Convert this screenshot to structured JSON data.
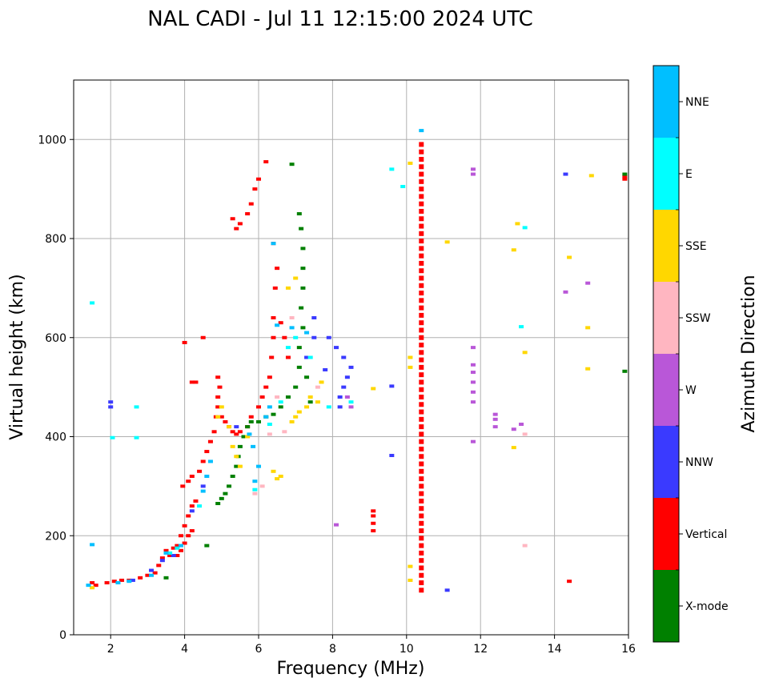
{
  "chart_data": {
    "type": "scatter",
    "title": "NAL CADI - Jul 11 12:15:00 2024 UTC",
    "xlabel": "Frequency (MHz)",
    "ylabel": "Virtual height (km)",
    "xlim": [
      1,
      16
    ],
    "ylim": [
      0,
      1120
    ],
    "xticks": [
      2,
      4,
      6,
      8,
      10,
      12,
      14,
      16
    ],
    "yticks": [
      0,
      200,
      400,
      600,
      800,
      1000
    ],
    "grid": true,
    "colorbar": {
      "label": "Azimuth Direction",
      "categories": [
        {
          "name": "X-mode",
          "color": "#008000"
        },
        {
          "name": "Vertical",
          "color": "#ff0000"
        },
        {
          "name": "NNW",
          "color": "#3a3aff"
        },
        {
          "name": "W",
          "color": "#b957d8"
        },
        {
          "name": "SSW",
          "color": "#ffb6c1"
        },
        {
          "name": "SSE",
          "color": "#ffd700"
        },
        {
          "name": "E",
          "color": "#00ffff"
        },
        {
          "name": "NNE",
          "color": "#00bfff"
        }
      ]
    },
    "series": [
      {
        "name": "Vertical",
        "points": [
          [
            1.5,
            105
          ],
          [
            1.6,
            100
          ],
          [
            1.9,
            105
          ],
          [
            2.1,
            108
          ],
          [
            2.3,
            110
          ],
          [
            2.5,
            110
          ],
          [
            2.8,
            115
          ],
          [
            3.0,
            120
          ],
          [
            3.2,
            125
          ],
          [
            3.3,
            140
          ],
          [
            3.4,
            155
          ],
          [
            3.5,
            170
          ],
          [
            3.6,
            160
          ],
          [
            3.7,
            175
          ],
          [
            3.8,
            180
          ],
          [
            3.9,
            200
          ],
          [
            4.0,
            220
          ],
          [
            4.1,
            240
          ],
          [
            4.2,
            260
          ],
          [
            4.3,
            270
          ],
          [
            3.8,
            160
          ],
          [
            3.9,
            170
          ],
          [
            4.0,
            185
          ],
          [
            4.1,
            200
          ],
          [
            4.2,
            210
          ],
          [
            3.95,
            300
          ],
          [
            4.1,
            310
          ],
          [
            4.2,
            320
          ],
          [
            4.4,
            330
          ],
          [
            4.5,
            350
          ],
          [
            4.6,
            370
          ],
          [
            4.7,
            390
          ],
          [
            4.8,
            410
          ],
          [
            4.85,
            440
          ],
          [
            4.9,
            460
          ],
          [
            4.9,
            480
          ],
          [
            4.95,
            500
          ],
          [
            4.9,
            520
          ],
          [
            5.0,
            440
          ],
          [
            5.1,
            430
          ],
          [
            5.2,
            420
          ],
          [
            5.3,
            410
          ],
          [
            5.4,
            405
          ],
          [
            5.5,
            410
          ],
          [
            5.6,
            400
          ],
          [
            5.7,
            420
          ],
          [
            5.8,
            440
          ],
          [
            6.0,
            460
          ],
          [
            6.1,
            480
          ],
          [
            6.2,
            500
          ],
          [
            6.3,
            520
          ],
          [
            6.35,
            560
          ],
          [
            6.4,
            600
          ],
          [
            6.4,
            640
          ],
          [
            6.45,
            700
          ],
          [
            6.5,
            740
          ],
          [
            6.4,
            790
          ],
          [
            6.6,
            630
          ],
          [
            6.7,
            600
          ],
          [
            6.8,
            560
          ],
          [
            4.2,
            510
          ],
          [
            4.0,
            590
          ],
          [
            5.4,
            820
          ],
          [
            5.5,
            830
          ],
          [
            5.7,
            850
          ],
          [
            5.8,
            870
          ],
          [
            5.9,
            900
          ],
          [
            6.0,
            920
          ],
          [
            6.2,
            955
          ],
          [
            5.3,
            840
          ],
          [
            9.1,
            210
          ],
          [
            9.1,
            225
          ],
          [
            9.1,
            240
          ],
          [
            9.1,
            250
          ],
          [
            15.9,
            925
          ],
          [
            15.9,
            920
          ],
          [
            14.4,
            108
          ],
          [
            4.3,
            510
          ],
          [
            4.5,
            600
          ]
        ]
      },
      {
        "name": "X-mode",
        "points": [
          [
            4.9,
            265
          ],
          [
            5.0,
            275
          ],
          [
            5.1,
            285
          ],
          [
            5.2,
            300
          ],
          [
            5.3,
            320
          ],
          [
            5.4,
            340
          ],
          [
            5.45,
            360
          ],
          [
            5.5,
            380
          ],
          [
            5.6,
            400
          ],
          [
            5.7,
            420
          ],
          [
            5.8,
            430
          ],
          [
            6.0,
            430
          ],
          [
            6.2,
            440
          ],
          [
            6.4,
            445
          ],
          [
            6.6,
            460
          ],
          [
            6.8,
            480
          ],
          [
            7.0,
            500
          ],
          [
            7.1,
            540
          ],
          [
            7.1,
            580
          ],
          [
            7.2,
            620
          ],
          [
            7.15,
            660
          ],
          [
            7.2,
            700
          ],
          [
            7.2,
            740
          ],
          [
            7.2,
            780
          ],
          [
            7.15,
            820
          ],
          [
            7.1,
            850
          ],
          [
            6.9,
            950
          ],
          [
            7.4,
            470
          ],
          [
            7.3,
            520
          ],
          [
            15.9,
            930
          ],
          [
            15.9,
            532
          ],
          [
            3.5,
            115
          ],
          [
            4.6,
            180
          ]
        ]
      },
      {
        "name": "NNW",
        "points": [
          [
            2.0,
            460
          ],
          [
            2.0,
            470
          ],
          [
            3.1,
            130
          ],
          [
            3.4,
            150
          ],
          [
            3.7,
            160
          ],
          [
            4.2,
            250
          ],
          [
            4.5,
            300
          ],
          [
            5.4,
            420
          ],
          [
            7.3,
            560
          ],
          [
            7.5,
            600
          ],
          [
            8.2,
            460
          ],
          [
            8.2,
            480
          ],
          [
            8.3,
            500
          ],
          [
            8.4,
            520
          ],
          [
            8.5,
            540
          ],
          [
            8.3,
            560
          ],
          [
            8.1,
            580
          ],
          [
            7.9,
            600
          ],
          [
            7.5,
            640
          ],
          [
            9.6,
            362
          ],
          [
            9.6,
            502
          ],
          [
            11.1,
            90
          ],
          [
            14.3,
            930
          ],
          [
            2.6,
            110
          ],
          [
            7.8,
            535
          ]
        ]
      },
      {
        "name": "W",
        "points": [
          [
            8.1,
            222
          ],
          [
            8.5,
            460
          ],
          [
            8.4,
            480
          ],
          [
            11.8,
            390
          ],
          [
            11.8,
            470
          ],
          [
            11.8,
            490
          ],
          [
            11.8,
            510
          ],
          [
            11.8,
            530
          ],
          [
            11.8,
            545
          ],
          [
            11.8,
            580
          ],
          [
            12.4,
            420
          ],
          [
            12.4,
            435
          ],
          [
            12.4,
            445
          ],
          [
            12.9,
            415
          ],
          [
            13.1,
            425
          ],
          [
            14.3,
            692
          ],
          [
            14.9,
            710
          ],
          [
            11.8,
            930
          ],
          [
            11.8,
            940
          ]
        ]
      },
      {
        "name": "SSW",
        "points": [
          [
            6.3,
            405
          ],
          [
            6.7,
            410
          ],
          [
            5.9,
            285
          ],
          [
            6.1,
            300
          ],
          [
            13.2,
            180
          ],
          [
            13.2,
            405
          ],
          [
            6.5,
            480
          ],
          [
            7.6,
            500
          ],
          [
            6.9,
            640
          ]
        ]
      },
      {
        "name": "SSE",
        "points": [
          [
            1.5,
            95
          ],
          [
            4.9,
            440
          ],
          [
            5.0,
            460
          ],
          [
            5.2,
            420
          ],
          [
            5.3,
            380
          ],
          [
            5.4,
            360
          ],
          [
            5.5,
            340
          ],
          [
            5.7,
            400
          ],
          [
            6.4,
            330
          ],
          [
            6.5,
            315
          ],
          [
            6.9,
            430
          ],
          [
            7.0,
            440
          ],
          [
            7.1,
            450
          ],
          [
            7.3,
            460
          ],
          [
            7.4,
            480
          ],
          [
            7.6,
            470
          ],
          [
            6.8,
            700
          ],
          [
            7.0,
            720
          ],
          [
            9.1,
            497
          ],
          [
            10.1,
            110
          ],
          [
            10.1,
            138
          ],
          [
            10.1,
            540
          ],
          [
            10.1,
            560
          ],
          [
            10.1,
            952
          ],
          [
            11.1,
            793
          ],
          [
            12.9,
            378
          ],
          [
            12.9,
            777
          ],
          [
            13.0,
            830
          ],
          [
            13.2,
            570
          ],
          [
            14.4,
            762
          ],
          [
            14.9,
            537
          ],
          [
            14.9,
            620
          ],
          [
            15.0,
            927
          ],
          [
            6.6,
            320
          ],
          [
            7.7,
            510
          ]
        ]
      },
      {
        "name": "E",
        "points": [
          [
            1.5,
            670
          ],
          [
            2.05,
            398
          ],
          [
            2.7,
            398
          ],
          [
            2.7,
            460
          ],
          [
            3.6,
            165
          ],
          [
            3.8,
            175
          ],
          [
            4.4,
            260
          ],
          [
            6.6,
            470
          ],
          [
            6.8,
            580
          ],
          [
            7.0,
            600
          ],
          [
            7.4,
            560
          ],
          [
            7.9,
            460
          ],
          [
            8.5,
            470
          ],
          [
            9.6,
            940
          ],
          [
            9.9,
            905
          ],
          [
            13.1,
            622
          ],
          [
            13.2,
            822
          ],
          [
            5.9,
            293
          ],
          [
            6.3,
            425
          ]
        ]
      },
      {
        "name": "NNE",
        "points": [
          [
            1.5,
            182
          ],
          [
            1.4,
            100
          ],
          [
            2.2,
            105
          ],
          [
            2.5,
            108
          ],
          [
            3.1,
            120
          ],
          [
            3.5,
            165
          ],
          [
            3.9,
            180
          ],
          [
            4.5,
            290
          ],
          [
            4.6,
            320
          ],
          [
            4.7,
            350
          ],
          [
            5.9,
            310
          ],
          [
            6.0,
            340
          ],
          [
            5.85,
            380
          ],
          [
            5.75,
            405
          ],
          [
            6.2,
            440
          ],
          [
            6.3,
            460
          ],
          [
            6.4,
            790
          ],
          [
            6.5,
            625
          ],
          [
            10.4,
            1018
          ],
          [
            6.9,
            620
          ],
          [
            7.3,
            610
          ]
        ]
      }
    ],
    "vertical_column": {
      "name": "Vertical",
      "x": 10.4,
      "y_from": 90,
      "y_to": 990,
      "step": 15
    }
  }
}
